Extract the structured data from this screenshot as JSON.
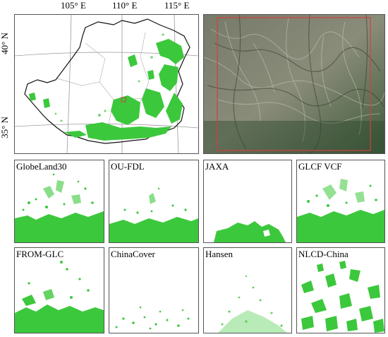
{
  "overview_map": {
    "lon_labels": [
      "105° E",
      "110° E",
      "115° E"
    ],
    "lat_labels": [
      "40° N",
      "35° N"
    ]
  },
  "colors": {
    "forest_green": "#3cc83c",
    "extent_box": "#d04040",
    "panel_border": "#555555"
  },
  "products": [
    {
      "name": "GlobeLand30"
    },
    {
      "name": "OU-FDL"
    },
    {
      "name": "JAXA"
    },
    {
      "name": "GLCF VCF"
    },
    {
      "name": "FROM-GLC"
    },
    {
      "name": "ChinaCover"
    },
    {
      "name": "Hansen"
    },
    {
      "name": "NLCD-China"
    }
  ]
}
